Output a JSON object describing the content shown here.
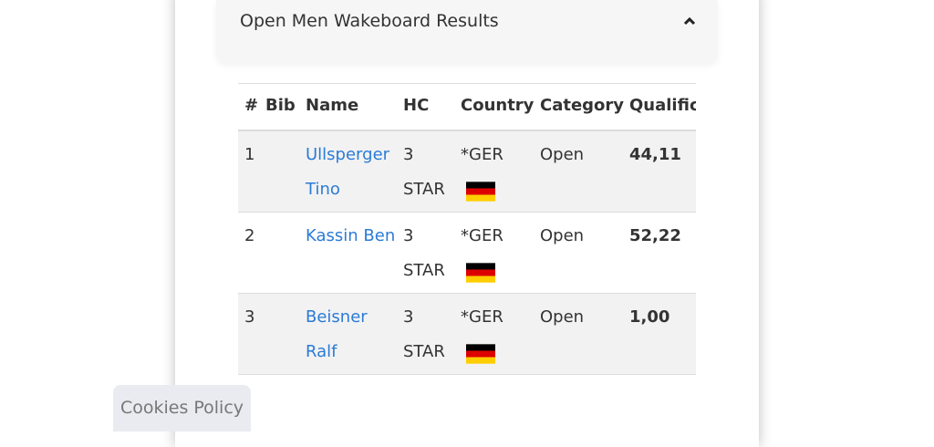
{
  "header": {
    "title": "Open Men Wakeboard Results"
  },
  "table": {
    "columns": [
      "#",
      "Bib",
      "Name",
      "HC",
      "Country",
      "Category",
      "Qualific"
    ],
    "rows": [
      {
        "rank": "1",
        "name": "Ullsperger Tino",
        "hc": "3 STAR",
        "country": "*GER",
        "category": "Open",
        "qualification": "44,11"
      },
      {
        "rank": "2",
        "name": "Kassin Ben",
        "hc": "3 STAR",
        "country": "*GER",
        "category": "Open",
        "qualification": "52,22"
      },
      {
        "rank": "3",
        "name": "Beisner Ralf",
        "hc": "3 STAR",
        "country": "*GER",
        "category": "Open",
        "qualification": "1,00"
      }
    ]
  },
  "cookies": {
    "label": "Cookies Policy"
  }
}
